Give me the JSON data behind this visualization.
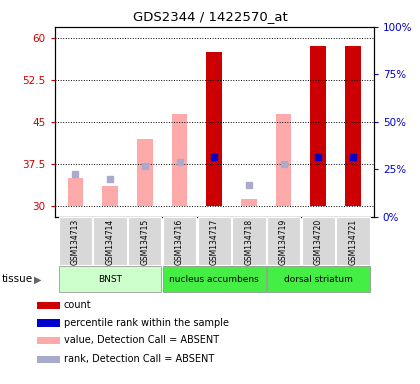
{
  "title": "GDS2344 / 1422570_at",
  "samples": [
    "GSM134713",
    "GSM134714",
    "GSM134715",
    "GSM134716",
    "GSM134717",
    "GSM134718",
    "GSM134719",
    "GSM134720",
    "GSM134721"
  ],
  "ylim_left": [
    28,
    62
  ],
  "ylim_right": [
    0,
    100
  ],
  "yticks_left": [
    30,
    37.5,
    45,
    52.5,
    60
  ],
  "yticks_right": [
    0,
    25,
    50,
    75,
    100
  ],
  "ytick_labels_left": [
    "30",
    "37.5",
    "45",
    "52.5",
    "60"
  ],
  "ytick_labels_right": [
    "0%",
    "25%",
    "50%",
    "75%",
    "100%"
  ],
  "red_bars": [
    null,
    null,
    null,
    null,
    57.5,
    null,
    null,
    58.5,
    58.5
  ],
  "pink_bars": [
    35.0,
    33.5,
    42.0,
    46.5,
    null,
    31.2,
    46.5,
    null,
    null
  ],
  "blue_dots": [
    null,
    null,
    null,
    null,
    38.7,
    null,
    null,
    38.8,
    38.8
  ],
  "lightblue_dots": [
    35.7,
    34.8,
    37.2,
    37.8,
    null,
    33.8,
    37.5,
    null,
    null
  ],
  "bar_width": 0.45,
  "red_color": "#cc0000",
  "pink_color": "#ffaaaa",
  "blue_color": "#0000cc",
  "lightblue_color": "#aaaacc",
  "tissue_defs": [
    {
      "label": "BNST",
      "indices": [
        0,
        1,
        2
      ],
      "color": "#ccffcc"
    },
    {
      "label": "nucleus accumbens",
      "indices": [
        3,
        4,
        5
      ],
      "color": "#44ee44"
    },
    {
      "label": "dorsal striatum",
      "indices": [
        6,
        7,
        8
      ],
      "color": "#44ee44"
    }
  ],
  "legend_items": [
    {
      "color": "#cc0000",
      "label": "count"
    },
    {
      "color": "#0000cc",
      "label": "percentile rank within the sample"
    },
    {
      "color": "#ffaaaa",
      "label": "value, Detection Call = ABSENT"
    },
    {
      "color": "#aaaacc",
      "label": "rank, Detection Call = ABSENT"
    }
  ]
}
